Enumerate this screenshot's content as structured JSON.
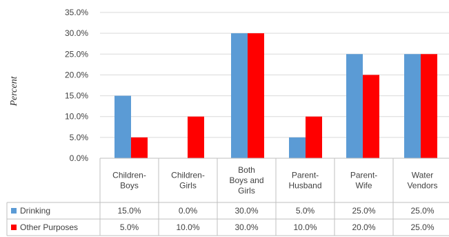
{
  "chart_data": {
    "type": "bar",
    "title": "",
    "xlabel": "",
    "ylabel": "Percent",
    "categories": [
      "Children-Boys",
      "Children-Girls",
      "Both Boys and Girls",
      "Parent-Husband",
      "Parent-Wife",
      "Water Vendors"
    ],
    "category_lines": [
      [
        "Children-",
        "Boys"
      ],
      [
        "Children-",
        "Girls"
      ],
      [
        "Both",
        "Boys and",
        "Girls"
      ],
      [
        "Parent-",
        "Husband"
      ],
      [
        "Parent-",
        "Wife"
      ],
      [
        "Water",
        "Vendors"
      ]
    ],
    "series": [
      {
        "name": "Drinking",
        "color": "#5b9bd5",
        "values": [
          15.0,
          0.0,
          30.0,
          5.0,
          25.0,
          25.0
        ],
        "labels": [
          "15.0%",
          "0.0%",
          "30.0%",
          "5.0%",
          "25.0%",
          "25.0%"
        ]
      },
      {
        "name": "Other Purposes",
        "color": "#ff0000",
        "values": [
          5.0,
          10.0,
          30.0,
          10.0,
          20.0,
          25.0
        ],
        "labels": [
          "5.0%",
          "10.0%",
          "30.0%",
          "10.0%",
          "20.0%",
          "25.0%"
        ]
      }
    ],
    "ylim": [
      0,
      35
    ],
    "yticks": [
      "0.0%",
      "5.0%",
      "10.0%",
      "15.0%",
      "20.0%",
      "25.0%",
      "30.0%",
      "35.0%"
    ],
    "grid": true,
    "legend": "data-table-rows",
    "has_data_table": true
  }
}
